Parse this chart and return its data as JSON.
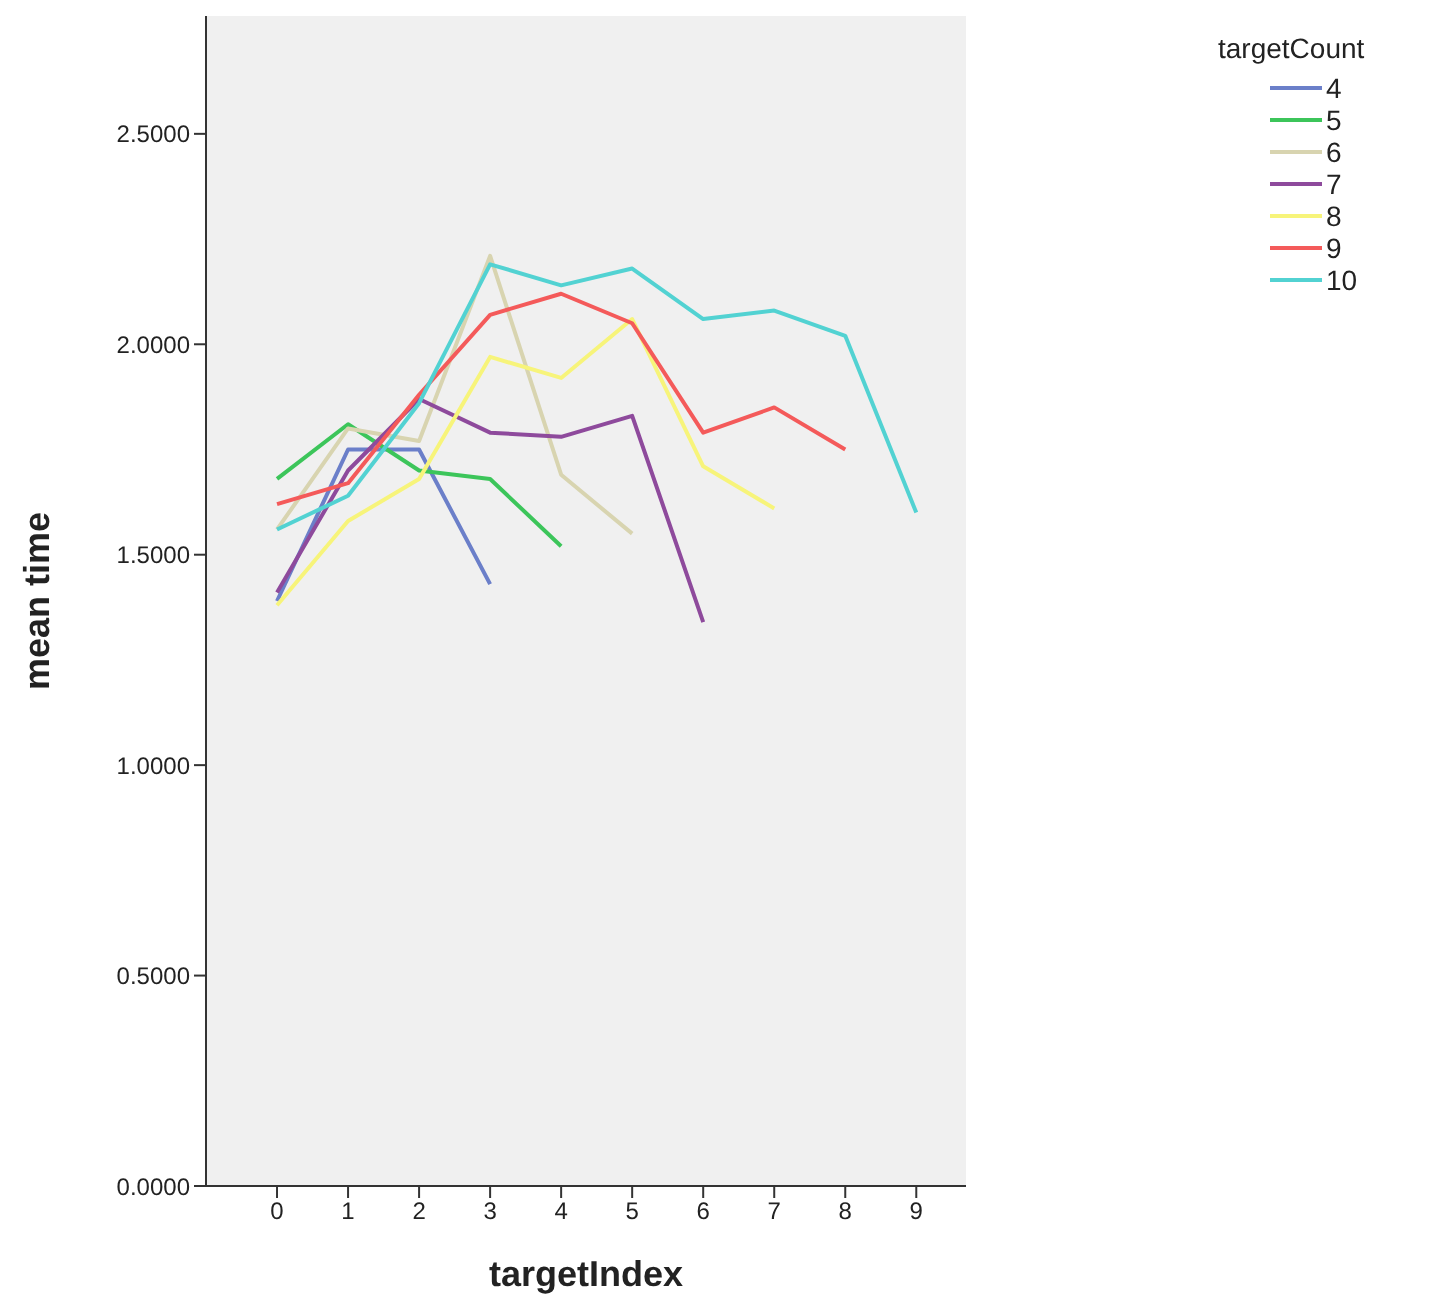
{
  "chart_data": {
    "type": "line",
    "xlabel": "targetIndex",
    "ylabel": "mean time",
    "legend_title": "targetCount",
    "x": [
      0,
      1,
      2,
      3,
      4,
      5,
      6,
      7,
      8,
      9
    ],
    "xlim": [
      -1,
      9.7
    ],
    "xticks": [
      0,
      1,
      2,
      3,
      4,
      5,
      6,
      7,
      8,
      9
    ],
    "ylim": [
      0,
      2.78
    ],
    "yticks": [
      {
        "value": 0,
        "label": "0.0000"
      },
      {
        "value": 0.5,
        "label": "0.5000"
      },
      {
        "value": 1,
        "label": "1.0000"
      },
      {
        "value": 1.5,
        "label": "1.5000"
      },
      {
        "value": 2,
        "label": "2.0000"
      },
      {
        "value": 2.5,
        "label": "2.5000"
      }
    ],
    "grid": false,
    "legend": "right",
    "marker": "none",
    "series": [
      {
        "name": "4",
        "color": "#6b7fc9",
        "values": [
          1.39,
          1.75,
          1.75,
          1.43,
          null,
          null,
          null,
          null,
          null,
          null
        ]
      },
      {
        "name": "5",
        "color": "#3cc55a",
        "values": [
          1.68,
          1.81,
          1.7,
          1.68,
          1.52,
          null,
          null,
          null,
          null,
          null
        ]
      },
      {
        "name": "6",
        "color": "#d8d4b0",
        "values": [
          1.56,
          1.8,
          1.77,
          2.21,
          1.69,
          1.55,
          null,
          null,
          null,
          null
        ]
      },
      {
        "name": "7",
        "color": "#8e4a9c",
        "values": [
          1.41,
          1.7,
          1.87,
          1.79,
          1.78,
          1.83,
          1.34,
          null,
          null,
          null
        ]
      },
      {
        "name": "8",
        "color": "#f7f47a",
        "values": [
          1.38,
          1.58,
          1.68,
          1.97,
          1.92,
          2.06,
          1.71,
          1.61,
          null,
          null
        ]
      },
      {
        "name": "9",
        "color": "#f45a5a",
        "values": [
          1.62,
          1.67,
          1.88,
          2.07,
          2.12,
          2.05,
          1.79,
          1.85,
          1.75,
          null
        ]
      },
      {
        "name": "10",
        "color": "#52d2d2",
        "values": [
          1.56,
          1.64,
          1.86,
          2.19,
          2.14,
          2.18,
          2.06,
          2.08,
          2.02,
          1.6
        ]
      }
    ]
  }
}
